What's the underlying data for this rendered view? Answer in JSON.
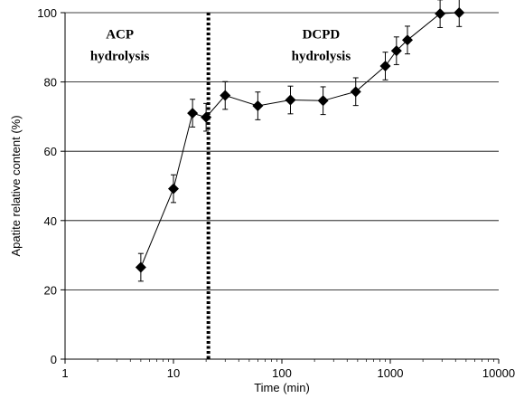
{
  "chart_data": {
    "type": "scatter",
    "xscale": "log",
    "xlim": [
      1,
      10000
    ],
    "ylim": [
      0,
      100
    ],
    "xlabel": "Time (min)",
    "ylabel": "Apatite relative content (%)",
    "x_ticks": [
      1,
      10,
      100,
      1000,
      10000
    ],
    "x_tick_labels": [
      "1",
      "10",
      "100",
      "1000",
      "10000"
    ],
    "y_ticks": [
      0,
      20,
      40,
      60,
      80,
      100
    ],
    "y_tick_labels": [
      "0",
      "20",
      "40",
      "60",
      "80",
      "100"
    ],
    "grid": "horizontal",
    "series": [
      {
        "marker": "diamond",
        "line": true,
        "error_bars": true,
        "color": "#000000",
        "points": [
          {
            "x": 5,
            "y": 26.5,
            "err": 4
          },
          {
            "x": 10,
            "y": 49.2,
            "err": 4
          },
          {
            "x": 15,
            "y": 71.0,
            "err": 4
          },
          {
            "x": 20,
            "y": 69.8,
            "err": 4
          },
          {
            "x": 30,
            "y": 76.1,
            "err": 4
          },
          {
            "x": 60,
            "y": 73.1,
            "err": 4
          },
          {
            "x": 120,
            "y": 74.8,
            "err": 4
          },
          {
            "x": 240,
            "y": 74.6,
            "err": 4
          },
          {
            "x": 480,
            "y": 77.2,
            "err": 4
          },
          {
            "x": 900,
            "y": 84.6,
            "err": 4
          },
          {
            "x": 1140,
            "y": 89.0,
            "err": 4
          },
          {
            "x": 1440,
            "y": 92.1,
            "err": 4
          },
          {
            "x": 2880,
            "y": 99.7,
            "err": 4
          },
          {
            "x": 4320,
            "y": 100.0,
            "err": 4
          }
        ]
      }
    ],
    "vertical_divider": {
      "x": 21,
      "style": "dotted"
    },
    "annotations": [
      {
        "lines": [
          "ACP",
          "hydrolysis"
        ],
        "x": 3.2,
        "y": 92.5
      },
      {
        "lines": [
          "DCPD",
          "hydrolysis"
        ],
        "x": 230,
        "y": 92.5
      }
    ]
  }
}
